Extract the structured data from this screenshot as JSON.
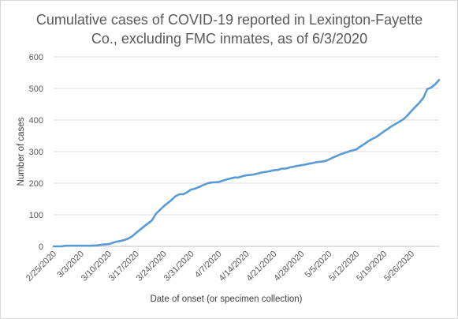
{
  "chart_data": {
    "type": "line",
    "title_lines": [
      "Cumulative cases of COVID-19 reported in Lexington-Fayette",
      "Co., excluding FMC inmates, as of 6/3/2020"
    ],
    "xlabel": "Date of onset (or specimen collection)",
    "ylabel": "Number of cases",
    "ylim": [
      0,
      600
    ],
    "y_ticks": [
      0,
      100,
      200,
      300,
      400,
      500,
      600
    ],
    "x_range": [
      "2020-02-25",
      "2020-06-02"
    ],
    "x_ticks": [
      {
        "date": "2020-02-25",
        "label": "2/25/2020"
      },
      {
        "date": "2020-03-03",
        "label": "3/3/2020"
      },
      {
        "date": "2020-03-10",
        "label": "3/10/2020"
      },
      {
        "date": "2020-03-17",
        "label": "3/17/2020"
      },
      {
        "date": "2020-03-24",
        "label": "3/24/2020"
      },
      {
        "date": "2020-03-31",
        "label": "3/31/2020"
      },
      {
        "date": "2020-04-07",
        "label": "4/7/2020"
      },
      {
        "date": "2020-04-14",
        "label": "4/14/2020"
      },
      {
        "date": "2020-04-21",
        "label": "4/21/2020"
      },
      {
        "date": "2020-04-28",
        "label": "4/28/2020"
      },
      {
        "date": "2020-05-05",
        "label": "5/5/2020"
      },
      {
        "date": "2020-05-12",
        "label": "5/12/2020"
      },
      {
        "date": "2020-05-19",
        "label": "5/19/2020"
      },
      {
        "date": "2020-05-26",
        "label": "5/26/2020"
      }
    ],
    "grid": true,
    "line_color": "#5b9bd5",
    "series": [
      {
        "points": [
          {
            "x": "2020-02-25",
            "y": 0
          },
          {
            "x": "2020-02-27",
            "y": 0
          },
          {
            "x": "2020-02-28",
            "y": 2
          },
          {
            "x": "2020-03-05",
            "y": 2
          },
          {
            "x": "2020-03-07",
            "y": 3
          },
          {
            "x": "2020-03-08",
            "y": 5
          },
          {
            "x": "2020-03-09",
            "y": 6
          },
          {
            "x": "2020-03-10",
            "y": 7
          },
          {
            "x": "2020-03-11",
            "y": 11
          },
          {
            "x": "2020-03-12",
            "y": 15
          },
          {
            "x": "2020-03-13",
            "y": 17
          },
          {
            "x": "2020-03-14",
            "y": 20
          },
          {
            "x": "2020-03-15",
            "y": 25
          },
          {
            "x": "2020-03-16",
            "y": 32
          },
          {
            "x": "2020-03-17",
            "y": 43
          },
          {
            "x": "2020-03-18",
            "y": 53
          },
          {
            "x": "2020-03-19",
            "y": 63
          },
          {
            "x": "2020-03-20",
            "y": 73
          },
          {
            "x": "2020-03-21",
            "y": 82
          },
          {
            "x": "2020-03-22",
            "y": 103
          },
          {
            "x": "2020-03-23",
            "y": 115
          },
          {
            "x": "2020-03-24",
            "y": 127
          },
          {
            "x": "2020-03-25",
            "y": 137
          },
          {
            "x": "2020-03-26",
            "y": 147
          },
          {
            "x": "2020-03-27",
            "y": 159
          },
          {
            "x": "2020-03-28",
            "y": 165
          },
          {
            "x": "2020-03-29",
            "y": 165
          },
          {
            "x": "2020-03-30",
            "y": 172
          },
          {
            "x": "2020-03-31",
            "y": 180
          },
          {
            "x": "2020-04-01",
            "y": 183
          },
          {
            "x": "2020-04-02",
            "y": 188
          },
          {
            "x": "2020-04-03",
            "y": 194
          },
          {
            "x": "2020-04-04",
            "y": 199
          },
          {
            "x": "2020-04-05",
            "y": 202
          },
          {
            "x": "2020-04-06",
            "y": 203
          },
          {
            "x": "2020-04-07",
            "y": 204
          },
          {
            "x": "2020-04-08",
            "y": 208
          },
          {
            "x": "2020-04-09",
            "y": 212
          },
          {
            "x": "2020-04-10",
            "y": 215
          },
          {
            "x": "2020-04-11",
            "y": 218
          },
          {
            "x": "2020-04-12",
            "y": 218
          },
          {
            "x": "2020-04-13",
            "y": 222
          },
          {
            "x": "2020-04-14",
            "y": 225
          },
          {
            "x": "2020-04-15",
            "y": 226
          },
          {
            "x": "2020-04-16",
            "y": 228
          },
          {
            "x": "2020-04-17",
            "y": 231
          },
          {
            "x": "2020-04-18",
            "y": 234
          },
          {
            "x": "2020-04-19",
            "y": 236
          },
          {
            "x": "2020-04-20",
            "y": 238
          },
          {
            "x": "2020-04-21",
            "y": 241
          },
          {
            "x": "2020-04-22",
            "y": 242
          },
          {
            "x": "2020-04-23",
            "y": 246
          },
          {
            "x": "2020-04-24",
            "y": 246
          },
          {
            "x": "2020-04-25",
            "y": 250
          },
          {
            "x": "2020-04-26",
            "y": 252
          },
          {
            "x": "2020-04-27",
            "y": 255
          },
          {
            "x": "2020-04-28",
            "y": 257
          },
          {
            "x": "2020-04-29",
            "y": 259
          },
          {
            "x": "2020-04-30",
            "y": 262
          },
          {
            "x": "2020-05-01",
            "y": 264
          },
          {
            "x": "2020-05-02",
            "y": 267
          },
          {
            "x": "2020-05-03",
            "y": 268
          },
          {
            "x": "2020-05-04",
            "y": 270
          },
          {
            "x": "2020-05-05",
            "y": 275
          },
          {
            "x": "2020-05-06",
            "y": 281
          },
          {
            "x": "2020-05-07",
            "y": 286
          },
          {
            "x": "2020-05-08",
            "y": 292
          },
          {
            "x": "2020-05-09",
            "y": 296
          },
          {
            "x": "2020-05-10",
            "y": 300
          },
          {
            "x": "2020-05-11",
            "y": 304
          },
          {
            "x": "2020-05-12",
            "y": 307
          },
          {
            "x": "2020-05-13",
            "y": 316
          },
          {
            "x": "2020-05-14",
            "y": 324
          },
          {
            "x": "2020-05-15",
            "y": 333
          },
          {
            "x": "2020-05-16",
            "y": 340
          },
          {
            "x": "2020-05-17",
            "y": 346
          },
          {
            "x": "2020-05-18",
            "y": 355
          },
          {
            "x": "2020-05-19",
            "y": 364
          },
          {
            "x": "2020-05-20",
            "y": 372
          },
          {
            "x": "2020-05-21",
            "y": 381
          },
          {
            "x": "2020-05-22",
            "y": 388
          },
          {
            "x": "2020-05-23",
            "y": 395
          },
          {
            "x": "2020-05-24",
            "y": 403
          },
          {
            "x": "2020-05-25",
            "y": 415
          },
          {
            "x": "2020-05-26",
            "y": 429
          },
          {
            "x": "2020-05-27",
            "y": 442
          },
          {
            "x": "2020-05-28",
            "y": 455
          },
          {
            "x": "2020-05-29",
            "y": 470
          },
          {
            "x": "2020-05-30",
            "y": 498
          },
          {
            "x": "2020-05-31",
            "y": 503
          },
          {
            "x": "2020-06-01",
            "y": 513
          },
          {
            "x": "2020-06-02",
            "y": 527
          }
        ]
      }
    ]
  }
}
